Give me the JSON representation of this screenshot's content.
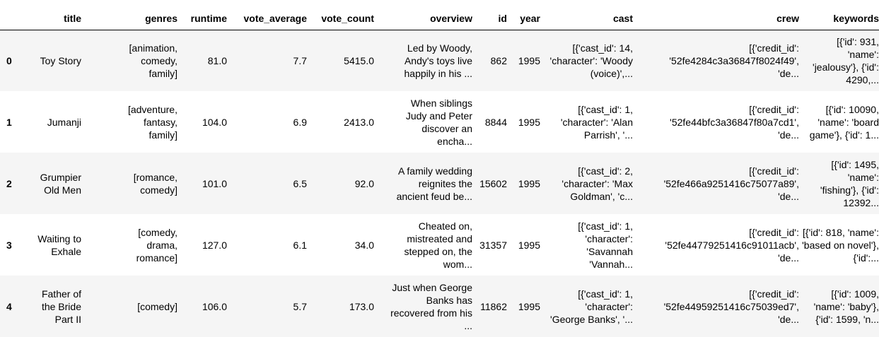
{
  "columns": [
    "",
    "title",
    "genres",
    "runtime",
    "vote_average",
    "vote_count",
    "overview",
    "id",
    "year",
    "cast",
    "crew",
    "keywords"
  ],
  "rows": [
    {
      "index": "0",
      "cells": [
        "Toy Story",
        "[animation, comedy, family]",
        "81.0",
        "7.7",
        "5415.0",
        "Led by Woody, Andy's toys live happily in his ...",
        "862",
        "1995",
        "[{'cast_id': 14, 'character': 'Woody (voice)',...",
        "[{'credit_id': '52fe4284c3a36847f8024f49', 'de...",
        "[{'id': 931, 'name': 'jealousy'}, {'id': 4290,..."
      ]
    },
    {
      "index": "1",
      "cells": [
        "Jumanji",
        "[adventure, fantasy, family]",
        "104.0",
        "6.9",
        "2413.0",
        "When siblings Judy and Peter discover an encha...",
        "8844",
        "1995",
        "[{'cast_id': 1, 'character': 'Alan Parrish', '...",
        "[{'credit_id': '52fe44bfc3a36847f80a7cd1', 'de...",
        "[{'id': 10090, 'name': 'board game'}, {'id': 1..."
      ]
    },
    {
      "index": "2",
      "cells": [
        "Grumpier Old Men",
        "[romance, comedy]",
        "101.0",
        "6.5",
        "92.0",
        "A family wedding reignites the ancient feud be...",
        "15602",
        "1995",
        "[{'cast_id': 2, 'character': 'Max Goldman', 'c...",
        "[{'credit_id': '52fe466a9251416c75077a89', 'de...",
        "[{'id': 1495, 'name': 'fishing'}, {'id': 12392..."
      ]
    },
    {
      "index": "3",
      "cells": [
        "Waiting to Exhale",
        "[comedy, drama, romance]",
        "127.0",
        "6.1",
        "34.0",
        "Cheated on, mistreated and stepped on, the wom...",
        "31357",
        "1995",
        "[{'cast_id': 1, 'character': 'Savannah 'Vannah...",
        "[{'credit_id': '52fe44779251416c91011acb', 'de...",
        "[{'id': 818, 'name': 'based on novel'}, {'id':..."
      ]
    },
    {
      "index": "4",
      "cells": [
        "Father of the Bride Part II",
        "[comedy]",
        "106.0",
        "5.7",
        "173.0",
        "Just when George Banks has recovered from his ...",
        "11862",
        "1995",
        "[{'cast_id': 1, 'character': 'George Banks', '...",
        "[{'credit_id': '52fe44959251416c75039ed7', 'de...",
        "[{'id': 1009, 'name': 'baby'}, {'id': 1599, 'n..."
      ]
    }
  ]
}
